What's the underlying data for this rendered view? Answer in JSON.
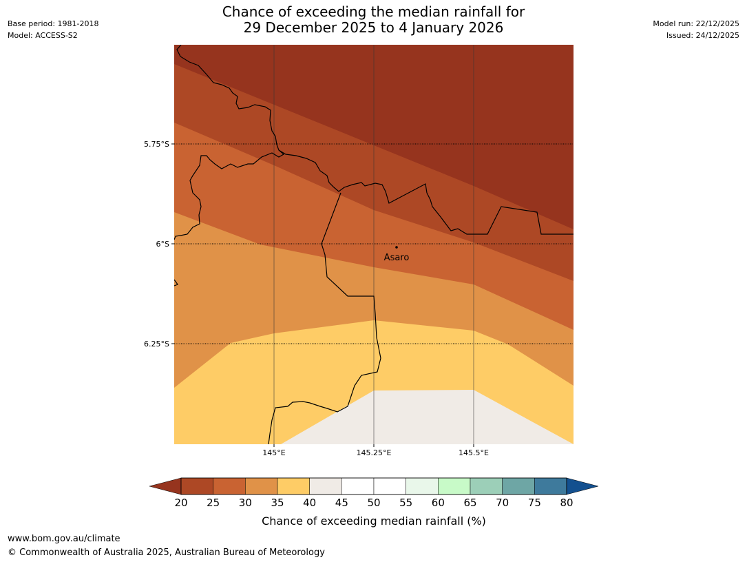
{
  "title_line1": "Chance of exceeding the median rainfall for",
  "title_line2": "29 December 2025 to 4 January 2026",
  "meta_left": {
    "base_period": "Base period: 1981-2018",
    "model": "Model: ACCESS-S2"
  },
  "meta_right": {
    "model_run": "Model run: 22/12/2025",
    "issued": "Issued: 24/12/2025"
  },
  "map": {
    "lat_labels": [
      "5.75°S",
      "6°S",
      "6.25°S"
    ],
    "lon_labels": [
      "145°E",
      "145.25°E",
      "145.5°E"
    ],
    "place": "Asaro",
    "colors": {
      "band_lt20": "#96341e",
      "band_20_25": "#ad4825",
      "band_25_30": "#c96332",
      "band_30_35": "#e09248",
      "band_35_40": "#fecc66",
      "band_40_45": "#f0ebe6"
    }
  },
  "colorbar": {
    "ticks": [
      "20",
      "25",
      "30",
      "35",
      "40",
      "45",
      "50",
      "55",
      "60",
      "65",
      "70",
      "75",
      "80"
    ],
    "colors": [
      "#ad4825",
      "#c96332",
      "#e09248",
      "#fecc66",
      "#f0ebe6",
      "#ffffff",
      "#ffffff",
      "#e9f7ea",
      "#c8fac8",
      "#9ccfb8",
      "#6ea6a5",
      "#3e7a9c"
    ],
    "low_color": "#96341e",
    "high_color": "#13508f",
    "label": "Chance of exceeding median rainfall (%)"
  },
  "footer": {
    "url": "www.bom.gov.au/climate",
    "copyright": "© Commonwealth of Australia 2025, Australian Bureau of Meteorology"
  }
}
